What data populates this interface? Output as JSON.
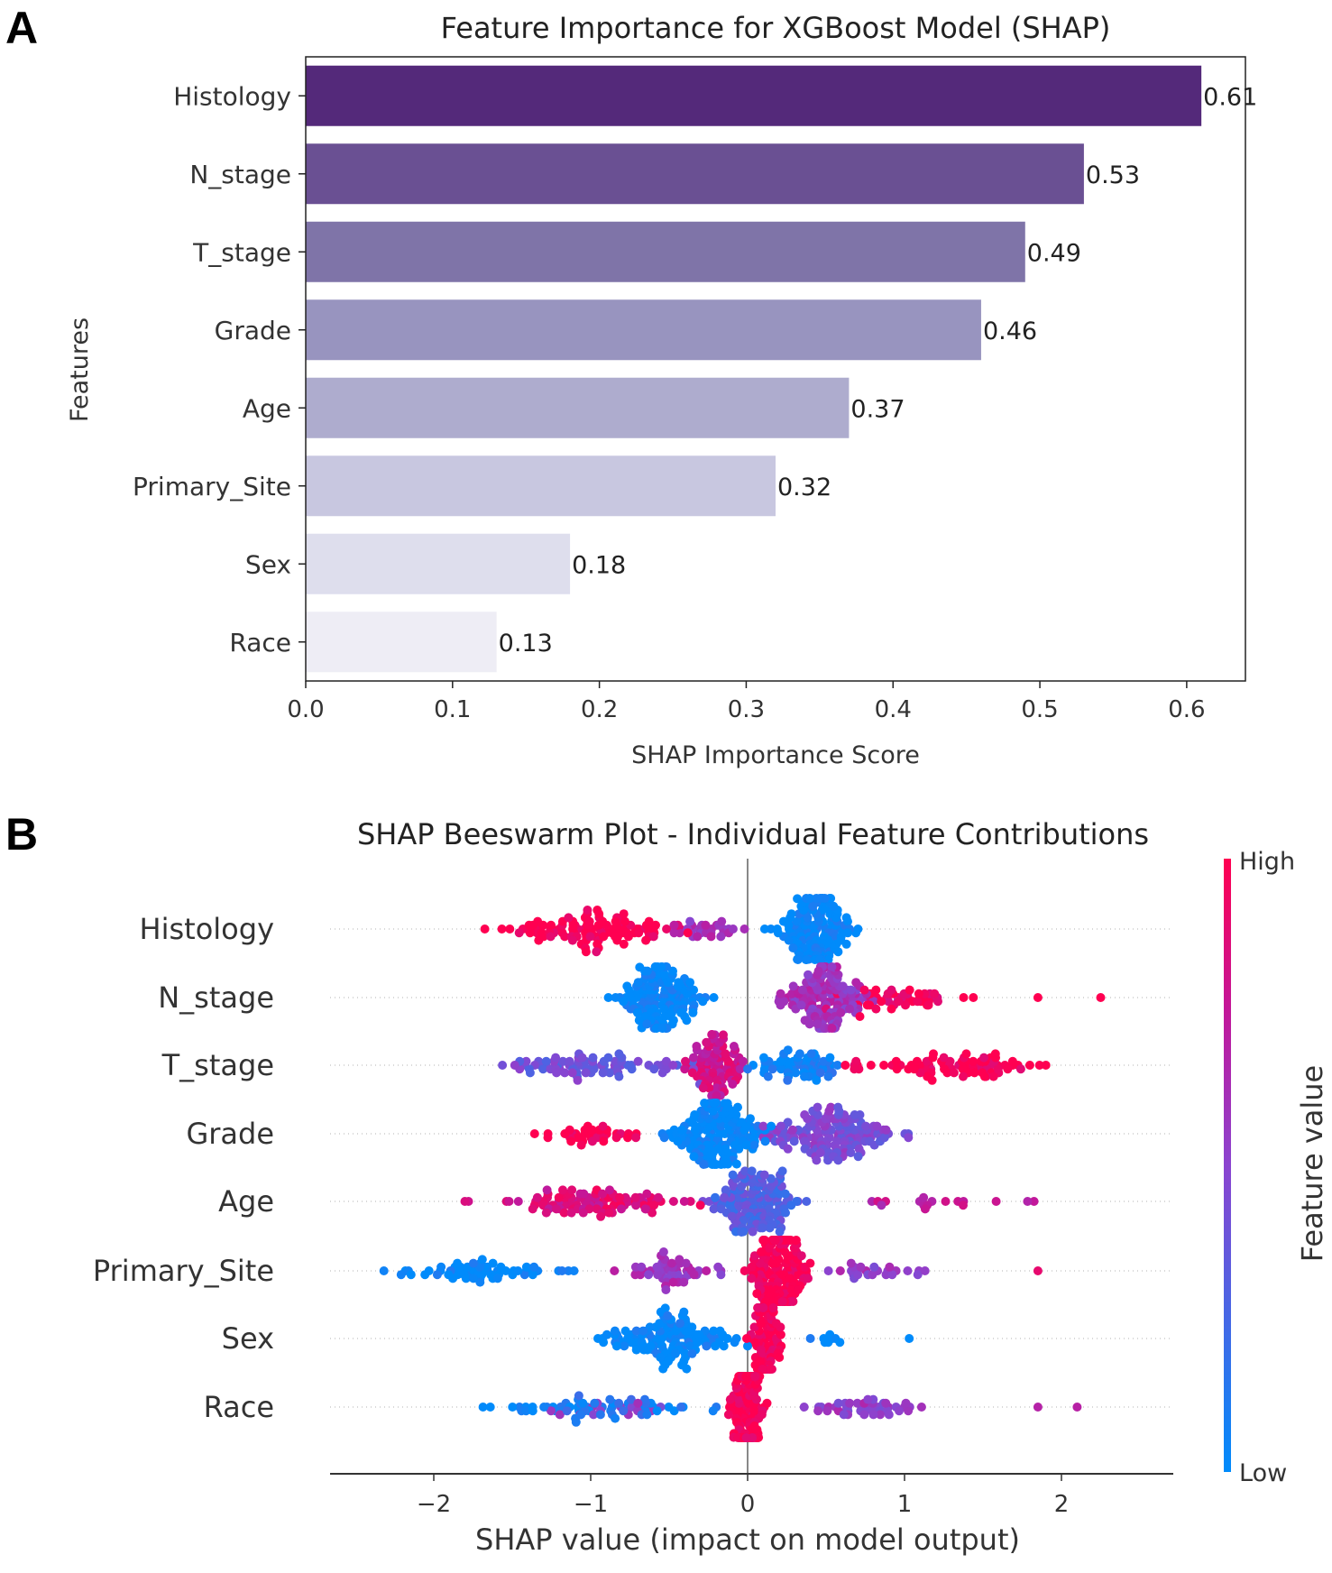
{
  "panel_a_letter": "A",
  "panel_b_letter": "B",
  "chart_data": [
    {
      "type": "bar",
      "orientation": "horizontal",
      "title": "Feature Importance for XGBoost Model (SHAP)",
      "xlabel": "SHAP Importance Score",
      "ylabel": "Features",
      "categories": [
        "Histology",
        "N_stage",
        "T_stage",
        "Grade",
        "Age",
        "Primary_Site",
        "Sex",
        "Race"
      ],
      "values": [
        0.61,
        0.53,
        0.49,
        0.46,
        0.37,
        0.32,
        0.18,
        0.13
      ],
      "value_labels": [
        "0.61",
        "0.53",
        "0.49",
        "0.46",
        "0.37",
        "0.32",
        "0.18",
        "0.13"
      ],
      "xticks": [
        "0.0",
        "0.1",
        "0.2",
        "0.3",
        "0.4",
        "0.5",
        "0.6"
      ],
      "xlim": [
        0,
        0.64
      ],
      "colors": [
        "#54297a",
        "#6a5093",
        "#7f74a8",
        "#9894bf",
        "#aeacce",
        "#c8c7e0",
        "#dedeed",
        "#eeedf5"
      ],
      "grid": false
    },
    {
      "type": "scatter",
      "subtype": "beeswarm",
      "title": "SHAP Beeswarm Plot - Individual Feature Contributions",
      "xlabel": "SHAP value (impact on model output)",
      "xticks": [
        "−2",
        "−1",
        "0",
        "1",
        "2"
      ],
      "xtick_values": [
        -2,
        -1,
        0,
        1,
        2
      ],
      "xlim": [
        -2.7,
        2.7
      ],
      "colorbar": {
        "label": "Feature value",
        "high": "High",
        "low": "Low",
        "low_color": "#008bfb",
        "high_color": "#ff0051"
      },
      "features": [
        {
          "name": "Histology",
          "clusters": [
            {
              "min": -2.3,
              "max": -0.3,
              "center": -1.0,
              "spread": 0.45,
              "value": 1.0,
              "n": 110
            },
            {
              "min": -0.6,
              "max": 0.05,
              "center": -0.25,
              "spread": 0.2,
              "value": 0.6,
              "n": 30
            },
            {
              "min": 0.0,
              "max": 1.05,
              "center": 0.45,
              "spread": 0.2,
              "value": 0.0,
              "n": 150
            }
          ]
        },
        {
          "name": "N_stage",
          "clusters": [
            {
              "min": -1.3,
              "max": 0.2,
              "center": -0.55,
              "spread": 0.22,
              "value": 0.0,
              "n": 150
            },
            {
              "min": -0.1,
              "max": 1.0,
              "center": 0.5,
              "spread": 0.22,
              "value": 0.6,
              "n": 140
            },
            {
              "min": 0.5,
              "max": 1.65,
              "center": 1.0,
              "spread": 0.35,
              "value": 0.95,
              "n": 45
            },
            {
              "min": 1.85,
              "max": 1.85,
              "center": 1.85,
              "spread": 0,
              "value": 1.0,
              "n": 1
            },
            {
              "min": 2.25,
              "max": 2.25,
              "center": 2.25,
              "spread": 0,
              "value": 1.0,
              "n": 1
            }
          ]
        },
        {
          "name": "T_stage",
          "clusters": [
            {
              "min": -2.0,
              "max": -0.3,
              "center": -1.0,
              "spread": 0.5,
              "value": 0.4,
              "n": 80
            },
            {
              "min": -0.5,
              "max": 0.25,
              "center": -0.2,
              "spread": 0.15,
              "value": 0.8,
              "n": 90
            },
            {
              "min": 0.0,
              "max": 0.8,
              "center": 0.35,
              "spread": 0.25,
              "value": 0.05,
              "n": 60
            },
            {
              "min": 0.5,
              "max": 2.45,
              "center": 1.3,
              "spread": 0.5,
              "value": 1.0,
              "n": 80
            }
          ]
        },
        {
          "name": "Grade",
          "clusters": [
            {
              "min": -1.65,
              "max": -0.6,
              "center": -1.0,
              "spread": 0.3,
              "value": 1.0,
              "n": 35
            },
            {
              "min": -0.9,
              "max": 0.15,
              "center": -0.2,
              "spread": 0.22,
              "value": 0.0,
              "n": 160
            },
            {
              "min": 0.1,
              "max": 1.8,
              "center": 0.55,
              "spread": 0.35,
              "value": 0.45,
              "n": 150
            }
          ]
        },
        {
          "name": "Age",
          "clusters": [
            {
              "min": -2.3,
              "max": -0.3,
              "center": -1.0,
              "spread": 0.5,
              "value": 0.85,
              "n": 100
            },
            {
              "min": -0.4,
              "max": 0.7,
              "center": 0.05,
              "spread": 0.22,
              "value": 0.3,
              "n": 140
            },
            {
              "min": 0.5,
              "max": 1.95,
              "center": 1.2,
              "spread": 0.45,
              "value": 0.75,
              "n": 18
            }
          ]
        },
        {
          "name": "Primary_Site",
          "clusters": [
            {
              "min": -2.5,
              "max": -1.1,
              "center": -1.7,
              "spread": 0.4,
              "value": 0.0,
              "n": 60
            },
            {
              "min": -1.1,
              "max": 0.0,
              "center": -0.5,
              "spread": 0.3,
              "value": 0.6,
              "n": 50
            },
            {
              "min": -0.1,
              "max": 0.55,
              "center": 0.2,
              "spread": 0.14,
              "value": 1.0,
              "n": 180
            },
            {
              "min": 0.5,
              "max": 1.4,
              "center": 0.8,
              "spread": 0.25,
              "value": 0.55,
              "n": 25
            },
            {
              "min": 1.85,
              "max": 1.85,
              "center": 1.85,
              "spread": 0,
              "value": 1.0,
              "n": 1
            }
          ]
        },
        {
          "name": "Sex",
          "clusters": [
            {
              "min": -1.35,
              "max": 0.0,
              "center": -0.5,
              "spread": 0.35,
              "value": 0.0,
              "n": 130
            },
            {
              "min": -0.1,
              "max": 0.3,
              "center": 0.12,
              "spread": 0.08,
              "value": 1.0,
              "n": 120
            },
            {
              "min": 0.4,
              "max": 0.65,
              "center": 0.5,
              "spread": 0.1,
              "value": 0.0,
              "n": 8
            },
            {
              "min": 1.03,
              "max": 1.03,
              "center": 1.03,
              "spread": 0,
              "value": 0.0,
              "n": 1
            }
          ]
        },
        {
          "name": "Race",
          "clusters": [
            {
              "min": -2.0,
              "max": -0.2,
              "center": -1.0,
              "spread": 0.5,
              "value": 0.1,
              "n": 60
            },
            {
              "min": -1.5,
              "max": -0.3,
              "center": -0.9,
              "spread": 0.4,
              "value": 0.55,
              "n": 15
            },
            {
              "min": -0.2,
              "max": 0.2,
              "center": 0.0,
              "spread": 0.08,
              "value": 1.0,
              "n": 150
            },
            {
              "min": 0.2,
              "max": 1.5,
              "center": 0.7,
              "spread": 0.35,
              "value": 0.55,
              "n": 45
            },
            {
              "min": 1.85,
              "max": 1.85,
              "center": 1.85,
              "spread": 0,
              "value": 0.6,
              "n": 1
            },
            {
              "min": 2.1,
              "max": 2.1,
              "center": 2.1,
              "spread": 0,
              "value": 0.6,
              "n": 1
            }
          ]
        }
      ]
    }
  ]
}
